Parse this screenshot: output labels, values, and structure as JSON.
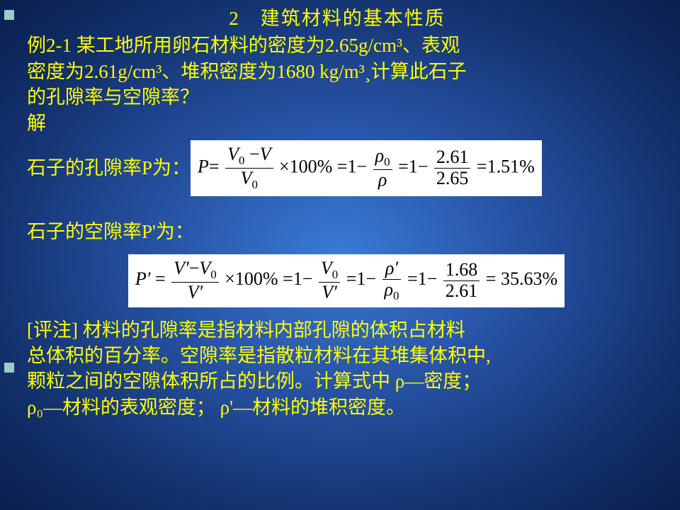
{
  "title": "2　建筑材料的基本性质",
  "problem_l1": "例2-1 某工地所用卵石材料的密度为2.65g/cm³、表观",
  "problem_l2": "密度为2.61g/cm³、堆积密度为1680 kg/m³¸计算此石子",
  "problem_l3": "的孔隙率与空隙率？",
  "jie": "解",
  "kongxi_label": "石子的孔隙率P为：",
  "kongxi_label2": "石子的空隙率P'为：",
  "formula1": {
    "P": "P",
    "eq": "=",
    "frac1_num_a": "V",
    "frac1_num_sub_a": "0",
    "minus": "−",
    "frac1_num_b": "V",
    "frac1_den": "V",
    "frac1_den_sub": "0",
    "times100": "×100% =1−",
    "frac2_num": "ρ",
    "frac2_num_sub": "0",
    "frac2_den": "ρ",
    "eq2": " =1−",
    "frac3_num": "2.61",
    "frac3_den": "2.65",
    "result": " =1.51%"
  },
  "formula2": {
    "P": "P′",
    "eq": " = ",
    "f1_num_a": "V′",
    "minus": "−",
    "f1_num_b": "V",
    "f1_num_b_sub": "0",
    "f1_den": "V′",
    "times100": "×100% =1−",
    "f2_num": "V",
    "f2_num_sub": "0",
    "f2_den": "V′",
    "eq2": " =1−",
    "f3_num": "ρ′",
    "f3_den": "ρ",
    "f3_den_sub": "0",
    "eq3": " =1−",
    "f4_num": "1.68",
    "f4_den": "2.61",
    "result": " = 35.63%"
  },
  "comment_l1": "[评注] 材料的孔隙率是指材料内部孔隙的体积占材料",
  "comment_l2": "总体积的百分率。空隙率是指散粒材料在其堆集体积中,",
  "comment_l3": "颗粒之间的空隙体积所占的比例。计算式中 ρ—密度；",
  "comment_l4": "ρ₀—材料的表观密度； ρ'—材料的堆积密度。"
}
